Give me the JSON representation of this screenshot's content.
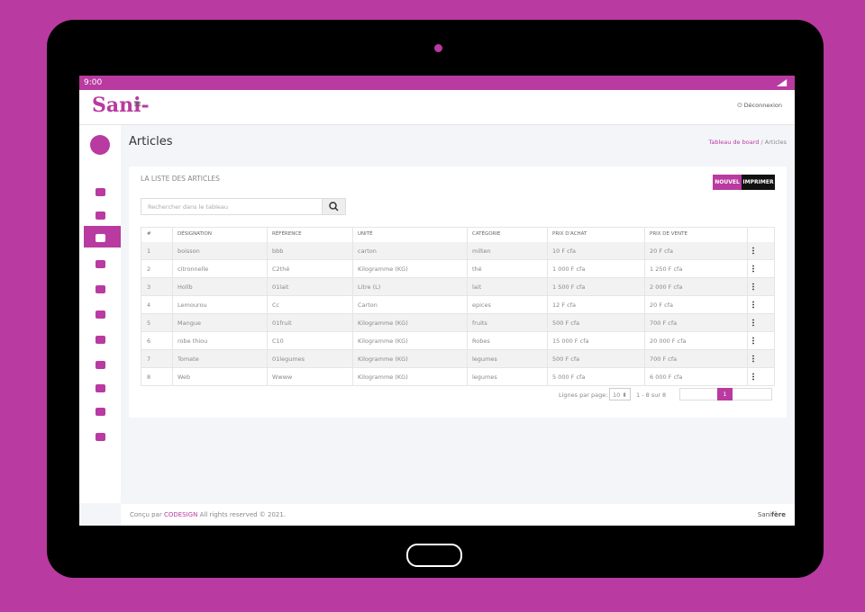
{
  "status_bar": {
    "time": "9:00"
  },
  "logo": "Sani-",
  "header": {
    "menu": "≡",
    "logout": "Déconnexion"
  },
  "page_title": "Articles",
  "breadcrumb": {
    "home": "Tableau de board",
    "separator": "/",
    "current": "Articles"
  },
  "card": {
    "title": "LA LISTE DES ARTICLES",
    "buttons": [
      "NOUVEL",
      "IMPRIMER"
    ],
    "search_placeholder": "Rechercher dans le tableau"
  },
  "table": {
    "columns": [
      "#",
      "DÉSIGNATION",
      "RÉFÉRENCE",
      "UNITÉ",
      "CATÉGORIE",
      "PRIX D'ACHAT",
      "PRIX DE VENTE"
    ],
    "rows": [
      [
        "1",
        "boisson",
        "bbb",
        "carton",
        "milten",
        "10 F cfa",
        "20 F cfa"
      ],
      [
        "2",
        "citronnelle",
        "C2thé",
        "Kilogramme (KG)",
        "thé",
        "1 000 F cfa",
        "1 250 F cfa"
      ],
      [
        "3",
        "Hollb",
        "01lait",
        "Litre (L)",
        "lait",
        "1 500 F cfa",
        "2 000 F cfa"
      ],
      [
        "4",
        "Lemourou",
        "Cc",
        "Carton",
        "epices",
        "12 F cfa",
        "20 F cfa"
      ],
      [
        "5",
        "Mangue",
        "01fruit",
        "Kilogramme (KG)",
        "fruits",
        "500 F cfa",
        "700 F cfa"
      ],
      [
        "6",
        "robe thiou",
        "C10",
        "Kilogramme (KG)",
        "Robes",
        "15 000 F cfa",
        "20 000 F cfa"
      ],
      [
        "7",
        "Tomate",
        "01legumes",
        "Kilogramme (KG)",
        "legumes",
        "500 F cfa",
        "700 F cfa"
      ],
      [
        "8",
        "Web",
        "Wwww",
        "Kilogramme (KG)",
        "legumes",
        "5 000 F cfa",
        "6 000 F cfa"
      ]
    ]
  },
  "pagination": {
    "rows_label": "Lignes par page:",
    "rows_per_page": "10",
    "range": "1 - 8 sur 8",
    "current_page": "1"
  },
  "footer": {
    "prefix": "Conçu par",
    "company": "CODESIGN",
    "rights": "All rights reserved © 2021.",
    "brand": "Sani",
    "brand_bold": "fère"
  }
}
